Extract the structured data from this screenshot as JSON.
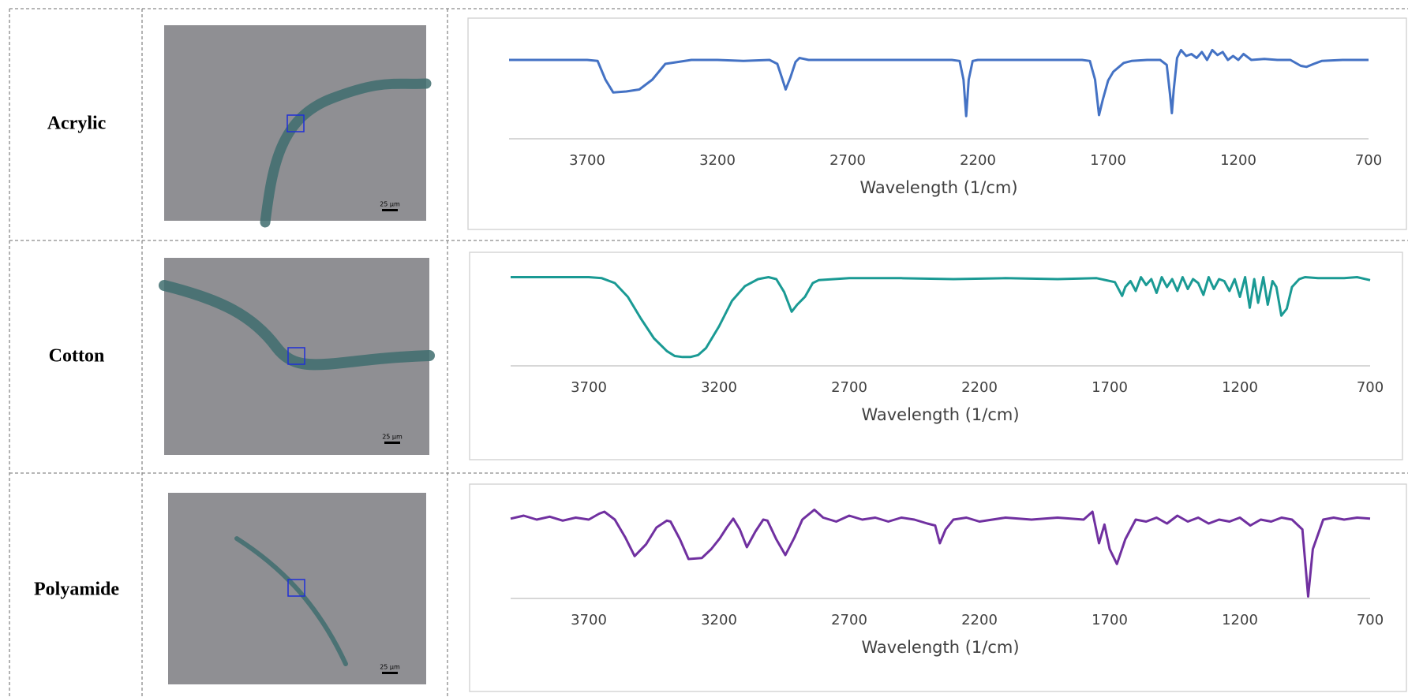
{
  "table": {
    "rows": [
      {
        "label": "Acrylic",
        "scale_bar": "25 µm"
      },
      {
        "label": "Cotton",
        "scale_bar": "25 µm"
      },
      {
        "label": "Polyamide",
        "scale_bar": "25 µm"
      }
    ]
  },
  "chart_data": [
    {
      "type": "line",
      "x_label": "Wavelength (1/cm)",
      "xlim": [
        4000,
        700
      ],
      "ylim": [
        0,
        100
      ],
      "xticks": [
        3700,
        3200,
        2700,
        2200,
        1700,
        1200,
        700
      ],
      "x": [
        4000,
        3900,
        3800,
        3700,
        3660,
        3630,
        3600,
        3550,
        3500,
        3450,
        3400,
        3300,
        3200,
        3100,
        3000,
        2970,
        2950,
        2938,
        2920,
        2900,
        2885,
        2850,
        2700,
        2500,
        2300,
        2270,
        2255,
        2245,
        2235,
        2220,
        2200,
        2000,
        1800,
        1770,
        1750,
        1735,
        1720,
        1700,
        1680,
        1640,
        1610,
        1550,
        1500,
        1475,
        1462,
        1455,
        1448,
        1435,
        1420,
        1400,
        1380,
        1360,
        1340,
        1320,
        1300,
        1280,
        1260,
        1240,
        1220,
        1200,
        1180,
        1150,
        1100,
        1050,
        1000,
        960,
        938,
        910,
        880,
        800,
        750,
        700
      ],
      "series": [
        {
          "color": "#4472c4",
          "values": [
            80,
            80,
            80,
            80,
            79,
            60,
            47,
            48,
            50,
            60,
            76,
            80,
            80,
            79,
            80,
            76,
            60,
            50,
            62,
            78,
            82,
            80,
            80,
            80,
            80,
            79,
            60,
            23,
            60,
            79,
            80,
            80,
            80,
            79,
            60,
            24,
            40,
            59,
            68,
            77,
            79,
            80,
            80,
            75,
            45,
            26,
            50,
            82,
            90,
            84,
            86,
            82,
            88,
            80,
            90,
            85,
            88,
            80,
            84,
            80,
            86,
            80,
            81,
            80,
            80,
            74,
            73,
            76,
            79,
            80,
            80,
            80
          ]
        }
      ]
    },
    {
      "type": "line",
      "x_label": "Wavelength (1/cm)",
      "xlim": [
        4000,
        700
      ],
      "ylim": [
        0,
        100
      ],
      "xticks": [
        3700,
        3200,
        2700,
        2200,
        1700,
        1200,
        700
      ],
      "x": [
        4000,
        3900,
        3800,
        3700,
        3650,
        3600,
        3550,
        3500,
        3450,
        3400,
        3370,
        3340,
        3310,
        3280,
        3250,
        3200,
        3150,
        3100,
        3050,
        3010,
        2980,
        2950,
        2921,
        2900,
        2870,
        2840,
        2817,
        2700,
        2500,
        2300,
        2100,
        1900,
        1750,
        1680,
        1660,
        1652,
        1640,
        1620,
        1600,
        1580,
        1560,
        1540,
        1520,
        1500,
        1480,
        1460,
        1440,
        1420,
        1400,
        1380,
        1360,
        1340,
        1320,
        1300,
        1280,
        1260,
        1240,
        1220,
        1200,
        1180,
        1162,
        1145,
        1130,
        1110,
        1093,
        1075,
        1060,
        1041,
        1020,
        1000,
        972,
        950,
        900,
        800,
        750,
        700
      ],
      "series": [
        {
          "color": "#1a9a94",
          "values": [
            90,
            90,
            90,
            90,
            89,
            84,
            70,
            48,
            28,
            15,
            10,
            9,
            9,
            11,
            18,
            40,
            66,
            81,
            88,
            90,
            88,
            75,
            55,
            62,
            70,
            84,
            87,
            89,
            89,
            88,
            89,
            88,
            89,
            85,
            75,
            71,
            80,
            86,
            76,
            90,
            82,
            88,
            74,
            90,
            80,
            88,
            76,
            90,
            78,
            88,
            84,
            72,
            90,
            78,
            88,
            86,
            76,
            88,
            70,
            90,
            59,
            88,
            64,
            90,
            62,
            86,
            80,
            51,
            58,
            80,
            88,
            90,
            89,
            89,
            90,
            87
          ]
        }
      ]
    },
    {
      "type": "line",
      "x_label": "Wavelength (1/cm)",
      "xlim": [
        4000,
        700
      ],
      "ylim": [
        0,
        100
      ],
      "xticks": [
        3700,
        3200,
        2700,
        2200,
        1700,
        1200,
        700
      ],
      "x": [
        4000,
        3950,
        3900,
        3850,
        3800,
        3750,
        3700,
        3660,
        3640,
        3600,
        3560,
        3524,
        3480,
        3440,
        3400,
        3386,
        3350,
        3317,
        3266,
        3230,
        3197,
        3170,
        3145,
        3120,
        3093,
        3060,
        3030,
        3014,
        2980,
        2945,
        2910,
        2880,
        2834,
        2800,
        2750,
        2700,
        2650,
        2600,
        2550,
        2500,
        2450,
        2400,
        2370,
        2352,
        2330,
        2300,
        2250,
        2200,
        2100,
        2000,
        1900,
        1800,
        1766,
        1741,
        1720,
        1700,
        1672,
        1640,
        1600,
        1560,
        1520,
        1480,
        1440,
        1400,
        1360,
        1320,
        1280,
        1240,
        1200,
        1160,
        1120,
        1080,
        1040,
        1000,
        960,
        938,
        920,
        880,
        840,
        800,
        750,
        700
      ],
      "series": [
        {
          "color": "#7030a0",
          "values": [
            81,
            84,
            80,
            83,
            79,
            82,
            80,
            86,
            88,
            80,
            62,
            43,
            55,
            72,
            79,
            78,
            60,
            40,
            41,
            50,
            61,
            72,
            81,
            70,
            52,
            68,
            80,
            79,
            60,
            44,
            62,
            80,
            90,
            82,
            78,
            84,
            80,
            82,
            78,
            82,
            80,
            76,
            74,
            56,
            70,
            80,
            82,
            78,
            82,
            80,
            82,
            80,
            88,
            56,
            75,
            50,
            35,
            60,
            80,
            78,
            82,
            76,
            84,
            78,
            82,
            76,
            80,
            78,
            82,
            74,
            80,
            78,
            82,
            80,
            70,
            2,
            50,
            80,
            82,
            80,
            82,
            81
          ]
        }
      ]
    }
  ]
}
